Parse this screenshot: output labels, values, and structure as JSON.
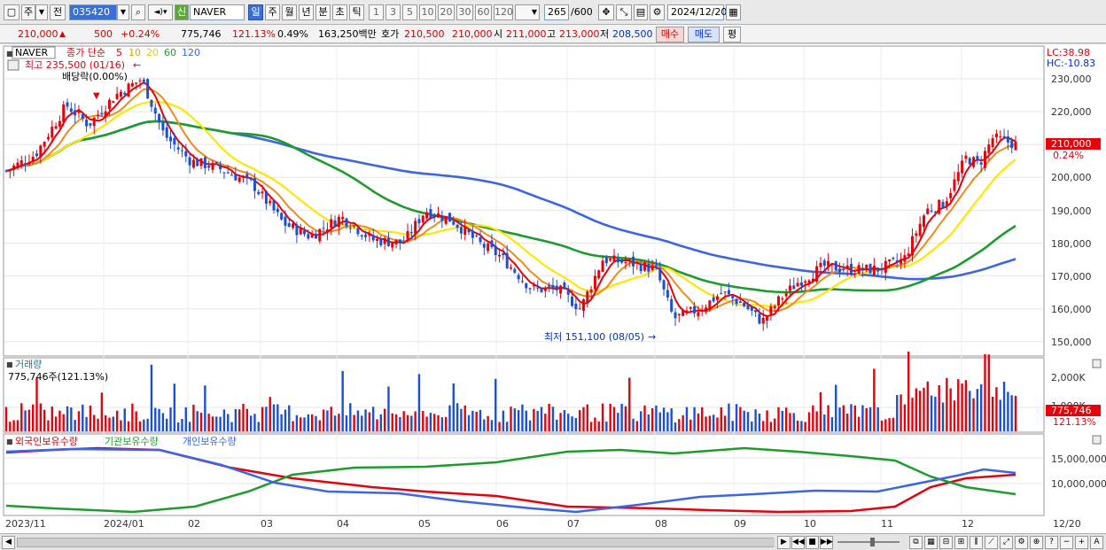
{
  "toolbar": {
    "type_label": "주",
    "prev_label": "전",
    "code_value": "035420",
    "new_label": "신",
    "stock_name": "NAVER",
    "periods": [
      "일",
      "주",
      "월",
      "년",
      "분",
      "초",
      "틱"
    ],
    "active_period": "일",
    "ticks": [
      "1",
      "3",
      "5",
      "10",
      "20",
      "30",
      "60",
      "120"
    ],
    "count_value": "265",
    "count_total": "/600",
    "date_value": "2024/12/20"
  },
  "quote": {
    "price": "210,000",
    "change": "500",
    "change_pct": "+0.24%",
    "volume": "775,746",
    "volume_ratio": "121.13%",
    "turnover": "0.49%",
    "amount": "163,250백만",
    "ask_label": "호가",
    "ask1": "210,500",
    "ask2": "210,000",
    "open_label": "시",
    "open": "211,000",
    "high_label": "고",
    "high": "213,000",
    "low_label": "저",
    "low": "208,500",
    "buy_label": "매수",
    "sell_label": "매도",
    "eval_label": "평"
  },
  "price_panel": {
    "name_tag": "NAVER",
    "ma_label": "종가 단순",
    "ma_periods": [
      "5",
      "10",
      "20",
      "60",
      "120"
    ],
    "high_note": "최고 235,500 (01/16)",
    "div_note": "배당락(0.00%)",
    "low_note": "최저 151,100 (08/05)",
    "lc": "LC:38.98",
    "hc": "HC:-10.83",
    "last_price_tag": "210,000",
    "last_pct_tag": "0.24%",
    "y_labels": [
      "230,000",
      "220,000",
      "210,000",
      "200,000",
      "190,000",
      "180,000",
      "170,000",
      "160,000",
      "150,000"
    ]
  },
  "volume_panel": {
    "title": "거래량",
    "value_note": "775,746주(121.13%)",
    "y_labels": [
      "2,000K",
      "1,000K"
    ],
    "last_tag": "775,746",
    "last_pct": "121.13%"
  },
  "holding_panel": {
    "legend": [
      "외국인보유수량",
      "기관보유수량",
      "개인보유수량"
    ],
    "y_labels": [
      "15,000,000",
      "10,000,000"
    ]
  },
  "x_axis": [
    "2023/11",
    "2024/01",
    "02",
    "03",
    "04",
    "05",
    "06",
    "07",
    "08",
    "09",
    "10",
    "11",
    "12",
    "12/20"
  ],
  "colors": {
    "up": "#e8000b",
    "down": "#1c4fd8",
    "ma5": "#e8000b",
    "ma10": "#f08a1c",
    "ma20": "#ffe600",
    "ma60": "#1f9b2e",
    "ma120": "#3c64e6"
  }
}
